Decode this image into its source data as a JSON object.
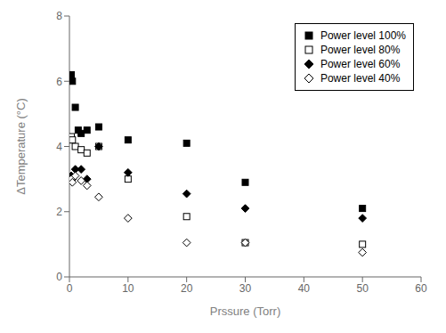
{
  "chart_data": {
    "type": "scatter",
    "xlabel": "Prssure (Torr)",
    "ylabel": "ΔTemperature (°C)",
    "xlim": [
      0,
      60
    ],
    "ylim": [
      0,
      8
    ],
    "xticks": [
      0,
      10,
      20,
      30,
      40,
      50,
      60
    ],
    "yticks": [
      0,
      2,
      4,
      6,
      8
    ],
    "grid": false,
    "legend": "upper right",
    "series": [
      {
        "name": "Power level 100%",
        "marker": "square",
        "color": "black",
        "x": [
          0.3,
          0.5,
          1.0,
          1.5,
          2.0,
          3.0,
          5.0,
          10.0,
          20.0,
          30.0,
          50.0
        ],
        "values": [
          6.2,
          6.0,
          5.2,
          4.5,
          4.4,
          4.5,
          4.6,
          4.2,
          4.1,
          2.9,
          2.1
        ]
      },
      {
        "name": "Power level 80%",
        "marker": "square-open",
        "color": "black",
        "x": [
          0.3,
          0.5,
          1.0,
          2.0,
          3.0,
          5.0,
          10.0,
          20.0,
          30.0,
          50.0
        ],
        "values": [
          4.3,
          4.2,
          4.0,
          3.9,
          3.8,
          4.0,
          3.0,
          1.85,
          1.05,
          1.0
        ]
      },
      {
        "name": "Power level 60%",
        "marker": "diamond",
        "color": "black",
        "x": [
          0.3,
          0.5,
          1.0,
          2.0,
          3.0,
          5.0,
          10.0,
          20.0,
          30.0,
          50.0
        ],
        "values": [
          3.1,
          3.0,
          3.3,
          3.3,
          3.0,
          4.0,
          3.2,
          2.55,
          2.1,
          1.8
        ]
      },
      {
        "name": "Power level 40%",
        "marker": "diamond-open",
        "color": "black",
        "x": [
          0.3,
          0.5,
          1.0,
          2.0,
          3.0,
          5.0,
          10.0,
          20.0,
          30.0,
          50.0
        ],
        "values": [
          3.0,
          2.9,
          3.1,
          2.95,
          2.8,
          2.45,
          1.8,
          1.05,
          1.05,
          0.75
        ]
      }
    ]
  }
}
